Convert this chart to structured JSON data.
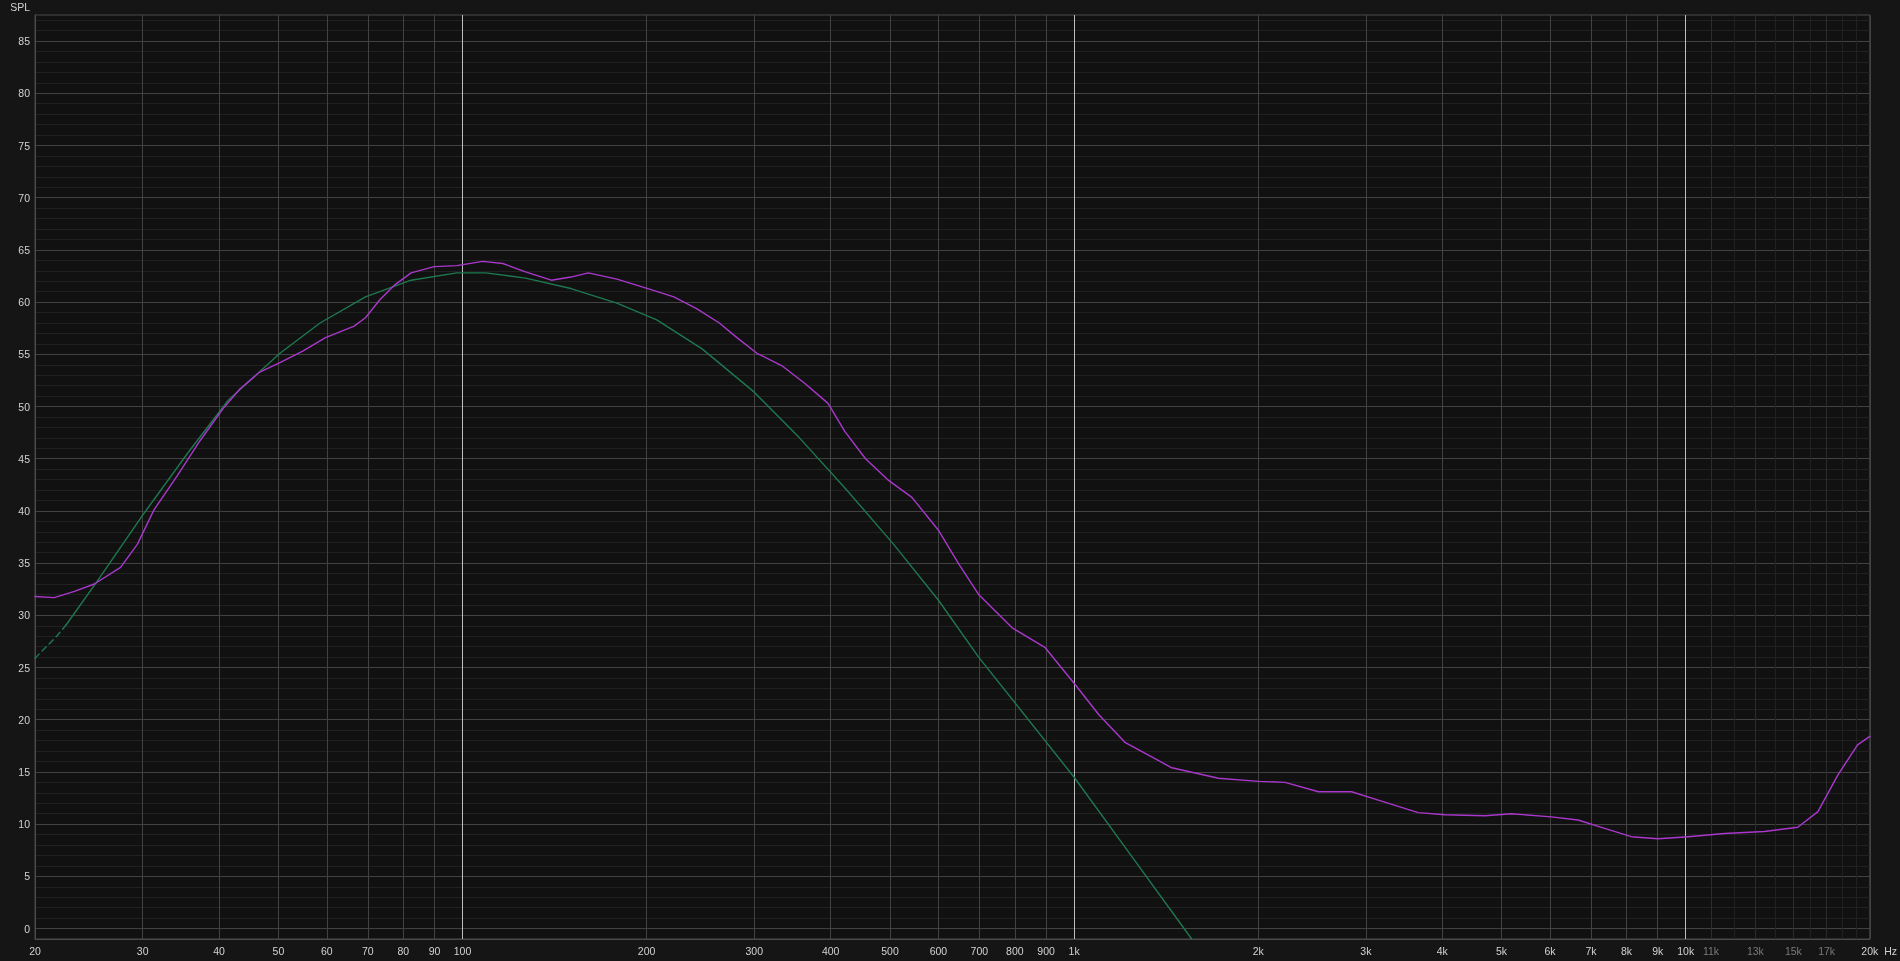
{
  "chart_data": {
    "type": "line",
    "ylabel": "SPL",
    "xlabel": "Hz",
    "log": "x",
    "grid": true,
    "marker": "none",
    "line_style": "solid",
    "xlim": [
      20,
      20000
    ],
    "ylim": [
      -1,
      87.5
    ],
    "xticks": [
      20,
      30,
      40,
      50,
      60,
      70,
      80,
      90,
      100,
      200,
      300,
      400,
      500,
      600,
      700,
      800,
      900,
      {
        "value": 1000,
        "label": "1k"
      },
      {
        "value": 2000,
        "label": "2k"
      },
      {
        "value": 3000,
        "label": "3k"
      },
      {
        "value": 4000,
        "label": "4k"
      },
      {
        "value": 5000,
        "label": "5k"
      },
      {
        "value": 6000,
        "label": "6k"
      },
      {
        "value": 7000,
        "label": "7k"
      },
      {
        "value": 8000,
        "label": "8k"
      },
      {
        "value": 9000,
        "label": "9k"
      },
      {
        "value": 10000,
        "label": "10k"
      },
      {
        "value": 11000,
        "label": "11k"
      },
      {
        "value": 12000,
        "label": null
      },
      {
        "value": 13000,
        "label": "13k"
      },
      {
        "value": 14000,
        "label": null
      },
      {
        "value": 15000,
        "label": "15k"
      },
      {
        "value": 16000,
        "label": null
      },
      {
        "value": 17000,
        "label": "17k"
      },
      {
        "value": 18000,
        "label": null
      },
      {
        "value": 19000,
        "label": null
      },
      {
        "value": 20000,
        "label": "20k"
      }
    ],
    "yticks": [
      0,
      {
        "value": 1,
        "label": null
      },
      {
        "value": 2,
        "label": null
      },
      {
        "value": 3,
        "label": null
      },
      {
        "value": 4,
        "label": null
      },
      5,
      {
        "value": 6,
        "label": null
      },
      {
        "value": 7,
        "label": null
      },
      {
        "value": 8,
        "label": null
      },
      {
        "value": 9,
        "label": null
      },
      10,
      {
        "value": 11,
        "label": null
      },
      {
        "value": 12,
        "label": null
      },
      {
        "value": 13,
        "label": null
      },
      {
        "value": 14,
        "label": null
      },
      15,
      {
        "value": 16,
        "label": null
      },
      {
        "value": 17,
        "label": null
      },
      {
        "value": 18,
        "label": null
      },
      {
        "value": 19,
        "label": null
      },
      20,
      {
        "value": 21,
        "label": null
      },
      {
        "value": 22,
        "label": null
      },
      {
        "value": 23,
        "label": null
      },
      {
        "value": 24,
        "label": null
      },
      25,
      {
        "value": 26,
        "label": null
      },
      {
        "value": 27,
        "label": null
      },
      {
        "value": 28,
        "label": null
      },
      {
        "value": 29,
        "label": null
      },
      30,
      {
        "value": 31,
        "label": null
      },
      {
        "value": 32,
        "label": null
      },
      {
        "value": 33,
        "label": null
      },
      {
        "value": 34,
        "label": null
      },
      35,
      {
        "value": 36,
        "label": null
      },
      {
        "value": 37,
        "label": null
      },
      {
        "value": 38,
        "label": null
      },
      {
        "value": 39,
        "label": null
      },
      40,
      {
        "value": 41,
        "label": null
      },
      {
        "value": 42,
        "label": null
      },
      {
        "value": 43,
        "label": null
      },
      {
        "value": 44,
        "label": null
      },
      45,
      {
        "value": 46,
        "label": null
      },
      {
        "value": 47,
        "label": null
      },
      {
        "value": 48,
        "label": null
      },
      {
        "value": 49,
        "label": null
      },
      50,
      {
        "value": 51,
        "label": null
      },
      {
        "value": 52,
        "label": null
      },
      {
        "value": 53,
        "label": null
      },
      {
        "value": 54,
        "label": null
      },
      55,
      {
        "value": 56,
        "label": null
      },
      {
        "value": 57,
        "label": null
      },
      {
        "value": 58,
        "label": null
      },
      {
        "value": 59,
        "label": null
      },
      60,
      {
        "value": 61,
        "label": null
      },
      {
        "value": 62,
        "label": null
      },
      {
        "value": 63,
        "label": null
      },
      {
        "value": 64,
        "label": null
      },
      65,
      {
        "value": 66,
        "label": null
      },
      {
        "value": 67,
        "label": null
      },
      {
        "value": 68,
        "label": null
      },
      {
        "value": 69,
        "label": null
      },
      70,
      {
        "value": 71,
        "label": null
      },
      {
        "value": 72,
        "label": null
      },
      {
        "value": 73,
        "label": null
      },
      {
        "value": 74,
        "label": null
      },
      75,
      {
        "value": 76,
        "label": null
      },
      {
        "value": 77,
        "label": null
      },
      {
        "value": 78,
        "label": null
      },
      {
        "value": 79,
        "label": null
      },
      80,
      {
        "value": 81,
        "label": null
      },
      {
        "value": 82,
        "label": null
      },
      {
        "value": 83,
        "label": null
      },
      {
        "value": 84,
        "label": null
      },
      85,
      {
        "value": 86,
        "label": null
      },
      {
        "value": 87,
        "label": null
      }
    ],
    "series": [
      {
        "color": "#1e7850",
        "line_style": "dashed",
        "x": [
          20,
          21.7,
          22.5
        ],
        "values": [
          25.9,
          28.0,
          29.1
        ]
      },
      {
        "color": "#1e7850",
        "x": [
          22.5,
          25.3,
          30.0,
          35.6,
          41.4,
          50.3,
          58.5,
          69.4,
          82.4,
          97.9,
          109.1,
          126.8,
          150.4,
          178.8,
          207.8,
          246.8,
          299.6,
          355.6,
          422,
          507,
          601,
          698,
          1003,
          1250,
          1557
        ],
        "values": [
          29.1,
          33.3,
          39.6,
          45.6,
          50.6,
          55.1,
          58.0,
          60.5,
          62.1,
          62.8,
          62.8,
          62.3,
          61.3,
          59.9,
          58.3,
          55.5,
          51.4,
          47.0,
          42.2,
          36.8,
          31.4,
          26.0,
          14.4,
          6.7,
          -1
        ]
      },
      {
        "color": "#aa38cc",
        "x": [
          20,
          21.5,
          23.2,
          25.0,
          27.6,
          29.4,
          31.3,
          34.2,
          37.2,
          40.6,
          43.3,
          46.6,
          50.3,
          54.8,
          59.7,
          66.5,
          69.4,
          73.2,
          77.3,
          82.4,
          89.9,
          97.9,
          107.9,
          116.4,
          126.8,
          139.7,
          150.4,
          160.6,
          178.8,
          201,
          221.6,
          241,
          263,
          281,
          303,
          333,
          363,
          396,
          422,
          456,
          498,
          543,
          601,
          648,
          698,
          792,
          897,
          1003,
          1097,
          1213,
          1445,
          1722,
          2002,
          2213,
          2509,
          2843,
          3143,
          3653,
          4039,
          4694,
          5190,
          6031,
          6668,
          7371,
          8147,
          9007,
          10100,
          11570,
          13450,
          15250,
          16450,
          17730,
          19100,
          20000
        ],
        "values": [
          31.8,
          31.7,
          32.3,
          33.0,
          34.6,
          36.8,
          40.1,
          43.4,
          46.7,
          49.8,
          51.7,
          53.3,
          54.2,
          55.3,
          56.6,
          57.7,
          58.5,
          60.2,
          61.6,
          62.8,
          63.4,
          63.5,
          63.9,
          63.7,
          62.9,
          62.1,
          62.4,
          62.8,
          62.2,
          61.3,
          60.5,
          59.4,
          58.0,
          56.6,
          55.1,
          53.9,
          52.2,
          50.3,
          47.6,
          45.0,
          42.9,
          41.3,
          38.1,
          34.9,
          32.0,
          28.8,
          26.9,
          23.4,
          20.5,
          17.8,
          15.4,
          14.4,
          14.1,
          14.0,
          13.1,
          13.1,
          12.3,
          11.1,
          10.9,
          10.8,
          11.0,
          10.7,
          10.4,
          9.6,
          8.8,
          8.6,
          8.8,
          9.1,
          9.3,
          9.7,
          11.2,
          14.7,
          17.6,
          18.4
        ]
      }
    ]
  }
}
